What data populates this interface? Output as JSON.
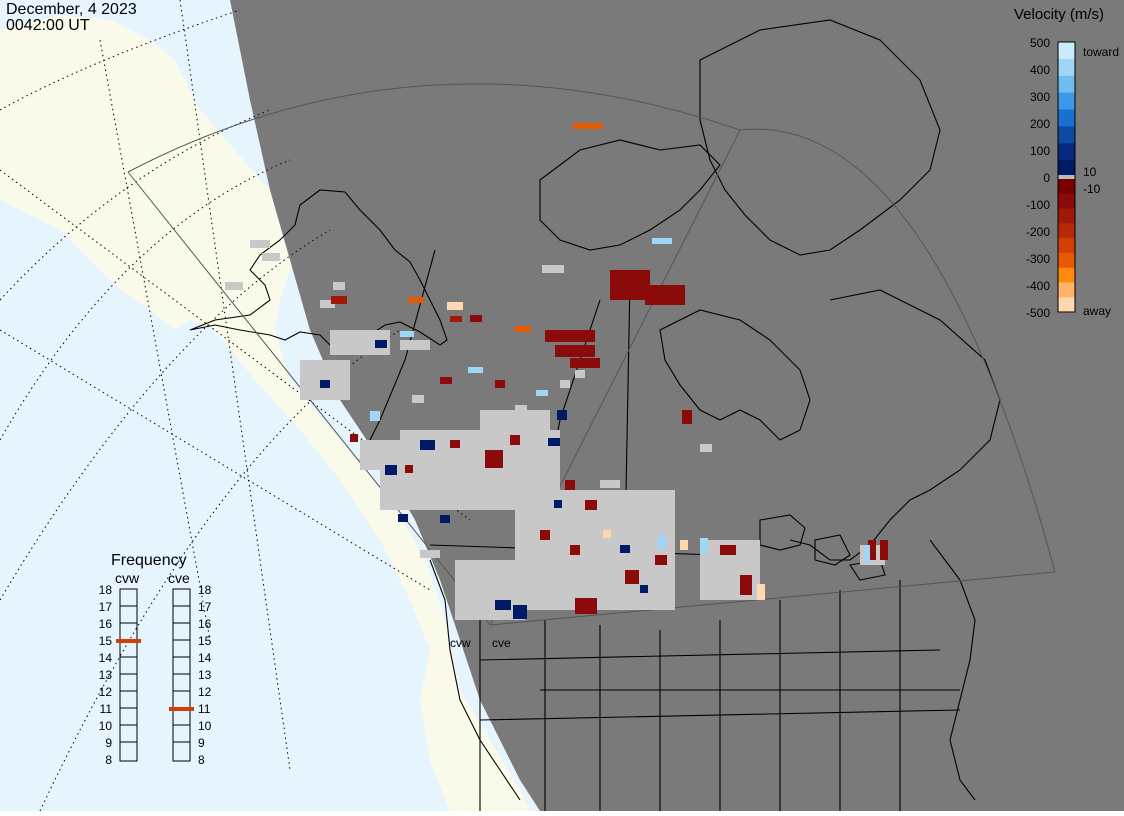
{
  "header": {
    "date": "December, 4 2023",
    "time": "0042:00 UT"
  },
  "velocity_scale": {
    "title": "Velocity (m/s)",
    "ticks": [
      "500",
      "400",
      "300",
      "200",
      "100",
      "0",
      "-100",
      "-200",
      "-300",
      "-400",
      "-500"
    ],
    "toward_label": "toward",
    "away_label": "away",
    "threshold_pos": "10",
    "threshold_neg": "-10",
    "colors_toward": [
      "#c8ecfb",
      "#9fd6f5",
      "#6fbdf0",
      "#3a9ae8",
      "#1a6fd0",
      "#0d4aa6",
      "#06287f",
      "#001a66"
    ],
    "colors_away": [
      "#7a0000",
      "#8b0a0a",
      "#a01808",
      "#b82a06",
      "#d04004",
      "#e85a02",
      "#ff8a10",
      "#ffb268",
      "#ffd8b0"
    ]
  },
  "frequency_panel": {
    "title": "Frequency",
    "radars": [
      {
        "name": "cvw",
        "frequency_mhz": 15
      },
      {
        "name": "cve",
        "frequency_mhz": 11
      }
    ],
    "ticks": [
      "18",
      "17",
      "16",
      "15",
      "14",
      "13",
      "12",
      "11",
      "10",
      "9",
      "8"
    ],
    "marker_color": "#d04004"
  },
  "map": {
    "site_labels": [
      "cvw",
      "cve"
    ],
    "colors": {
      "night": "#7a7a7a",
      "day_ocean": "#e6f5fd",
      "day_land": "#fafaea",
      "ground_scatter": "#c8c8c8",
      "coast": "#000000"
    }
  }
}
